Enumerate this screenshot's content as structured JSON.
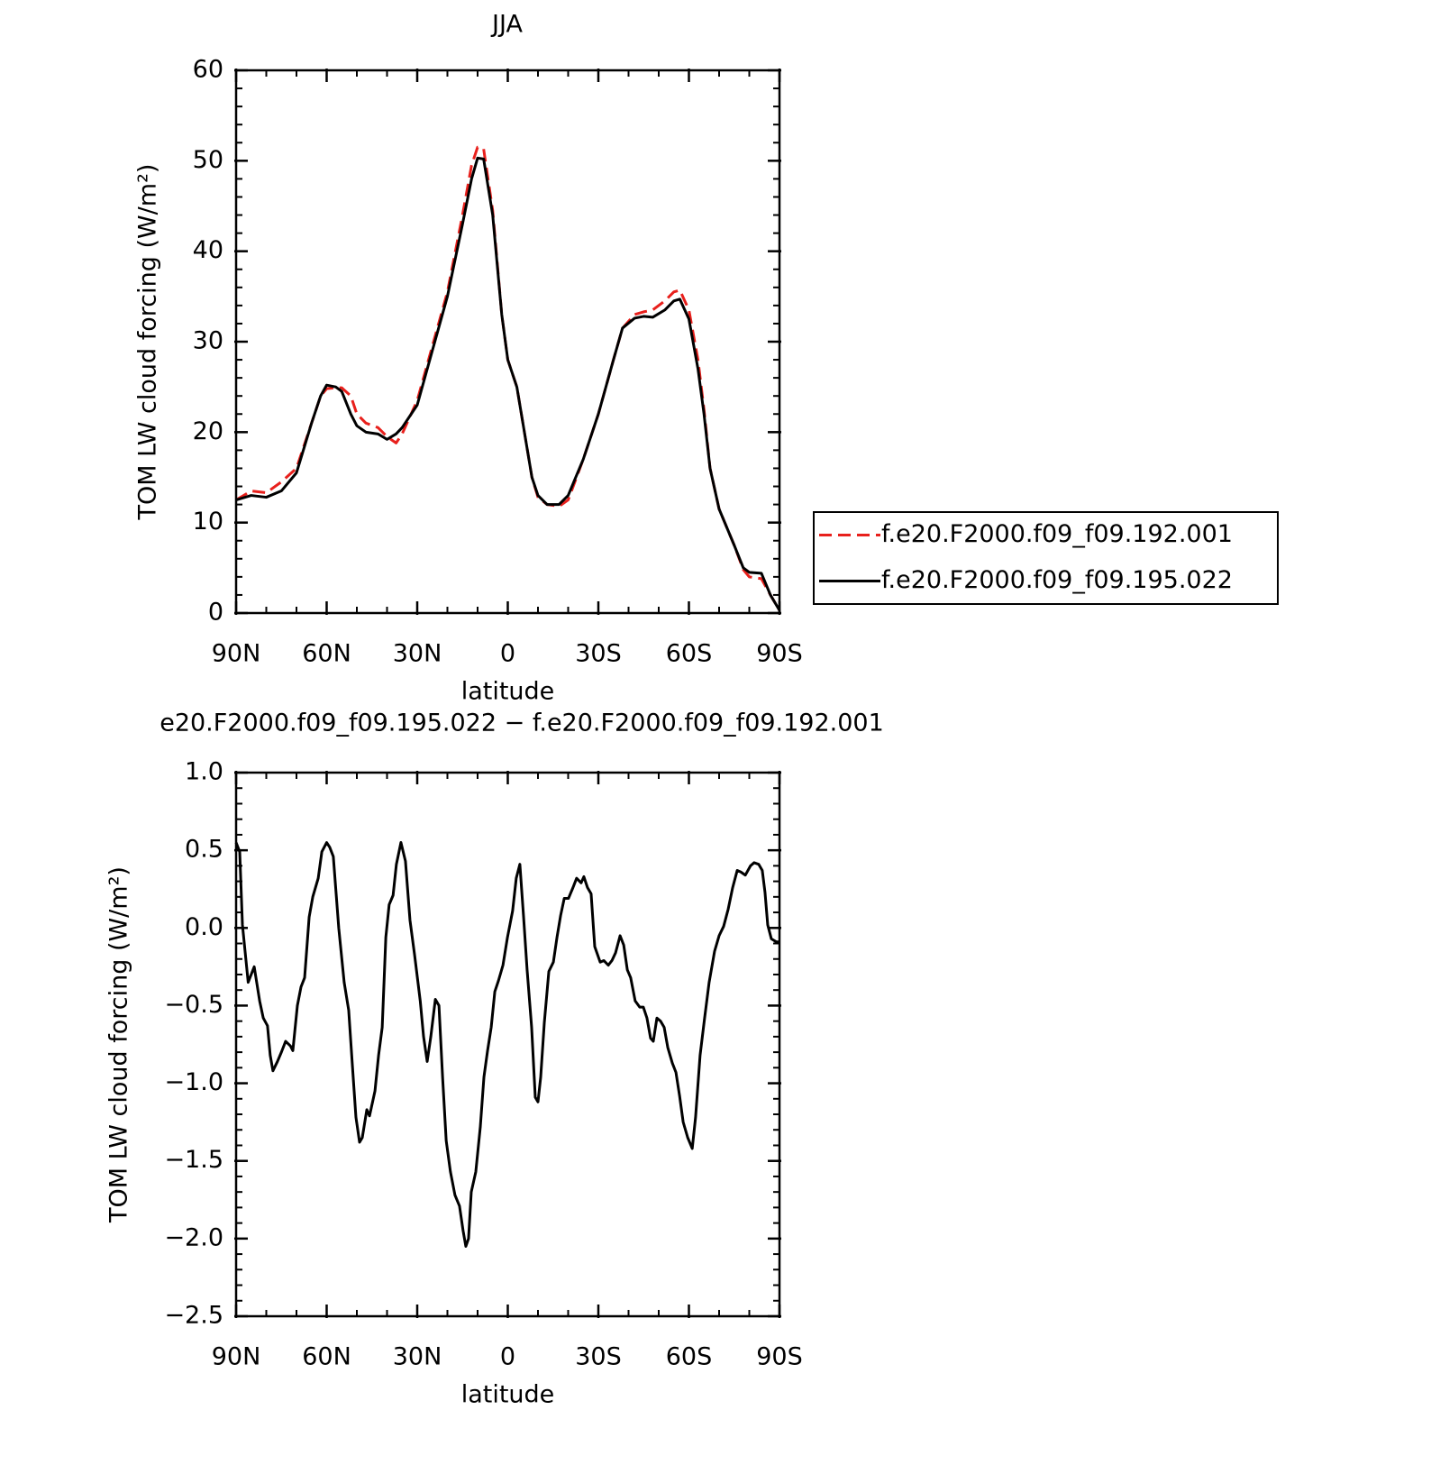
{
  "chart_data": [
    {
      "type": "line",
      "title": "JJA",
      "x_label": "latitude",
      "y_label": "TOM LW cloud forcing (W/m²)",
      "xlim": [
        90,
        -90
      ],
      "xticks": [
        {
          "value": 90,
          "label": "90N"
        },
        {
          "value": 60,
          "label": "60N"
        },
        {
          "value": 30,
          "label": "30N"
        },
        0,
        {
          "value": -30,
          "label": "30S"
        },
        {
          "value": -60,
          "label": "60S"
        },
        {
          "value": -90,
          "label": "90S"
        }
      ],
      "xminorticks": [
        80,
        70,
        50,
        40,
        20,
        10,
        -10,
        -20,
        -40,
        -50,
        -70,
        -80
      ],
      "ylim": [
        0,
        60
      ],
      "yticks": [
        0,
        10,
        20,
        30,
        40,
        50,
        60
      ],
      "yminorticks": [
        2,
        4,
        6,
        8,
        12,
        14,
        16,
        18,
        22,
        24,
        26,
        28,
        32,
        34,
        36,
        38,
        42,
        44,
        46,
        48,
        52,
        54,
        56,
        58
      ],
      "x": [
        90,
        85,
        80,
        75,
        70,
        65,
        62,
        60,
        57,
        55,
        52,
        50,
        47,
        43,
        40,
        37,
        35,
        30,
        25,
        20,
        15,
        12,
        10,
        8,
        5,
        2,
        0,
        -3,
        -5,
        -8,
        -10,
        -13,
        -17,
        -20,
        -25,
        -30,
        -35,
        -38,
        -42,
        -45,
        -48,
        -52,
        -55,
        -57,
        -60,
        -63,
        -65,
        -67,
        -70,
        -75,
        -78,
        -80,
        -84,
        -87,
        -90
      ],
      "series": [
        {
          "name": "f.e20.F2000.f09_f09.192.001",
          "color": "#e8201c",
          "line_style": "dashed",
          "values": [
            12.5,
            13.5,
            13.3,
            14.5,
            16,
            21,
            24,
            24.8,
            24.9,
            24.9,
            24,
            22,
            21,
            20.5,
            19.5,
            18.8,
            19.8,
            23.5,
            29.5,
            35.5,
            44,
            49.5,
            51.5,
            51.3,
            44.5,
            33,
            28,
            25,
            21,
            15,
            12.8,
            12,
            11.8,
            12.5,
            17,
            22,
            28,
            31.5,
            33,
            33.3,
            33.5,
            34.5,
            35.5,
            35.7,
            33.5,
            28,
            22.5,
            16,
            11.5,
            7.5,
            4.8,
            4,
            3.8,
            2,
            0.3
          ]
        },
        {
          "name": "f.e20.F2000.f09_f09.195.022",
          "color": "#000000",
          "line_style": "solid",
          "values": [
            12.5,
            13,
            12.8,
            13.5,
            15.5,
            21,
            24,
            25.2,
            25,
            24.5,
            22,
            20.7,
            20,
            19.8,
            19.2,
            19.8,
            20.5,
            23,
            29,
            35,
            43,
            48,
            50.3,
            50.2,
            44,
            33,
            28,
            25,
            21,
            15,
            13,
            12,
            12,
            13,
            17,
            22,
            28,
            31.5,
            32.6,
            32.8,
            32.7,
            33.5,
            34.5,
            34.7,
            32.5,
            27,
            22,
            16,
            11.5,
            7.5,
            5,
            4.5,
            4.4,
            2,
            0.3
          ]
        }
      ]
    },
    {
      "type": "line",
      "title": "e20.F2000.f09_f09.195.022 − f.e20.F2000.f09_f09.192.001",
      "x_label": "latitude",
      "y_label": "TOM LW cloud forcing (W/m²)",
      "xlim": [
        90,
        -90
      ],
      "xticks": [
        {
          "value": 90,
          "label": "90N"
        },
        {
          "value": 60,
          "label": "60N"
        },
        {
          "value": 30,
          "label": "30N"
        },
        0,
        {
          "value": -30,
          "label": "30S"
        },
        {
          "value": -60,
          "label": "60S"
        },
        {
          "value": -90,
          "label": "90S"
        }
      ],
      "xminorticks": [
        80,
        70,
        50,
        40,
        20,
        10,
        -10,
        -20,
        -40,
        -50,
        -70,
        -80
      ],
      "ylim": [
        -2.5,
        1.0
      ],
      "yticks": [
        {
          "value": -2.5,
          "label": "−2.5"
        },
        {
          "value": -2.0,
          "label": "−2.0"
        },
        {
          "value": -1.5,
          "label": "−1.5"
        },
        {
          "value": -1.0,
          "label": "−1.0"
        },
        {
          "value": -0.5,
          "label": "−0.5"
        },
        {
          "value": 0,
          "label": "0.0"
        },
        0.5,
        {
          "value": 1.0,
          "label": "1.0"
        }
      ],
      "yminorticks": [
        -2.4,
        -2.3,
        -2.2,
        -2.1,
        -1.9,
        -1.8,
        -1.7,
        -1.6,
        -1.4,
        -1.3,
        -1.2,
        -1.1,
        -0.9,
        -0.8,
        -0.7,
        -0.6,
        -0.4,
        -0.3,
        -0.2,
        -0.1,
        0.1,
        0.2,
        0.3,
        0.4,
        0.6,
        0.7,
        0.8,
        0.9
      ],
      "x": [
        90,
        88.8,
        87.9,
        86,
        84,
        82.2,
        81,
        79.6,
        78.7,
        77.8,
        76.3,
        75,
        73.6,
        72,
        71.2,
        69.7,
        68.5,
        67.3,
        65.8,
        64.6,
        62.8,
        61.6,
        60,
        59,
        57.8,
        56,
        54.2,
        52.7,
        51.5,
        50.3,
        49.1,
        48.2,
        46.7,
        45.8,
        44,
        42.8,
        41.6,
        40.4,
        39.3,
        38,
        36.9,
        35.4,
        33.9,
        32.4,
        30.9,
        29,
        27.9,
        26.7,
        25.5,
        24,
        22.8,
        21.6,
        20.4,
        19,
        17.5,
        16,
        14.8,
        13.9,
        13,
        12.1,
        10.6,
        9.1,
        7.9,
        6.7,
        5.5,
        4.3,
        3.1,
        1.6,
        0.1,
        -1.6,
        -2.8,
        -4,
        -5.2,
        -6.4,
        -7.9,
        -9.1,
        -10,
        -10.9,
        -12.1,
        -13.6,
        -15.1,
        -16.3,
        -17.5,
        -18.7,
        -20.1,
        -21.6,
        -22.8,
        -24.3,
        -25.2,
        -26.4,
        -27.6,
        -28.8,
        -30.6,
        -31.8,
        -33.3,
        -34.5,
        -35.7,
        -37.2,
        -38.4,
        -39.6,
        -40.7,
        -42.2,
        -43.7,
        -44.9,
        -46.1,
        -47.3,
        -48.2,
        -49.4,
        -50.6,
        -51.8,
        -53,
        -54.5,
        -55.7,
        -56.9,
        -58.1,
        -59.6,
        -61.1,
        -62.2,
        -63.7,
        -65.2,
        -66.7,
        -68.5,
        -70,
        -71.5,
        -73,
        -74.5,
        -76,
        -77.2,
        -78.7,
        -80.4,
        -81.6,
        -83.1,
        -84.3,
        -85.2,
        -86.1,
        -87.3,
        -89,
        -90
      ],
      "series": [
        {
          "color": "#000000",
          "line_style": "solid",
          "values": [
            0.55,
            0.49,
            0.02,
            -0.35,
            -0.25,
            -0.47,
            -0.58,
            -0.63,
            -0.82,
            -0.92,
            -0.86,
            -0.8,
            -0.73,
            -0.76,
            -0.79,
            -0.5,
            -0.38,
            -0.32,
            0.07,
            0.2,
            0.32,
            0.49,
            0.55,
            0.52,
            0.46,
            0.0,
            -0.35,
            -0.53,
            -0.88,
            -1.22,
            -1.38,
            -1.35,
            -1.17,
            -1.21,
            -1.05,
            -0.82,
            -0.64,
            -0.06,
            0.15,
            0.21,
            0.41,
            0.55,
            0.43,
            0.05,
            -0.17,
            -0.47,
            -0.7,
            -0.86,
            -0.7,
            -0.46,
            -0.5,
            -0.96,
            -1.37,
            -1.57,
            -1.72,
            -1.79,
            -1.95,
            -2.05,
            -2.0,
            -1.7,
            -1.57,
            -1.28,
            -0.96,
            -0.79,
            -0.64,
            -0.41,
            -0.34,
            -0.24,
            -0.06,
            0.11,
            0.32,
            0.41,
            0.08,
            -0.27,
            -0.64,
            -1.09,
            -1.12,
            -0.96,
            -0.61,
            -0.28,
            -0.22,
            -0.06,
            0.08,
            0.19,
            0.19,
            0.26,
            0.32,
            0.29,
            0.33,
            0.26,
            0.22,
            -0.12,
            -0.22,
            -0.21,
            -0.24,
            -0.21,
            -0.16,
            -0.05,
            -0.11,
            -0.27,
            -0.32,
            -0.47,
            -0.51,
            -0.51,
            -0.58,
            -0.71,
            -0.73,
            -0.58,
            -0.6,
            -0.64,
            -0.77,
            -0.87,
            -0.93,
            -1.08,
            -1.25,
            -1.35,
            -1.42,
            -1.22,
            -0.82,
            -0.58,
            -0.35,
            -0.15,
            -0.05,
            0.01,
            0.12,
            0.26,
            0.37,
            0.36,
            0.34,
            0.4,
            0.42,
            0.41,
            0.37,
            0.23,
            0.02,
            -0.07,
            -0.09,
            -0.09
          ]
        }
      ]
    }
  ]
}
